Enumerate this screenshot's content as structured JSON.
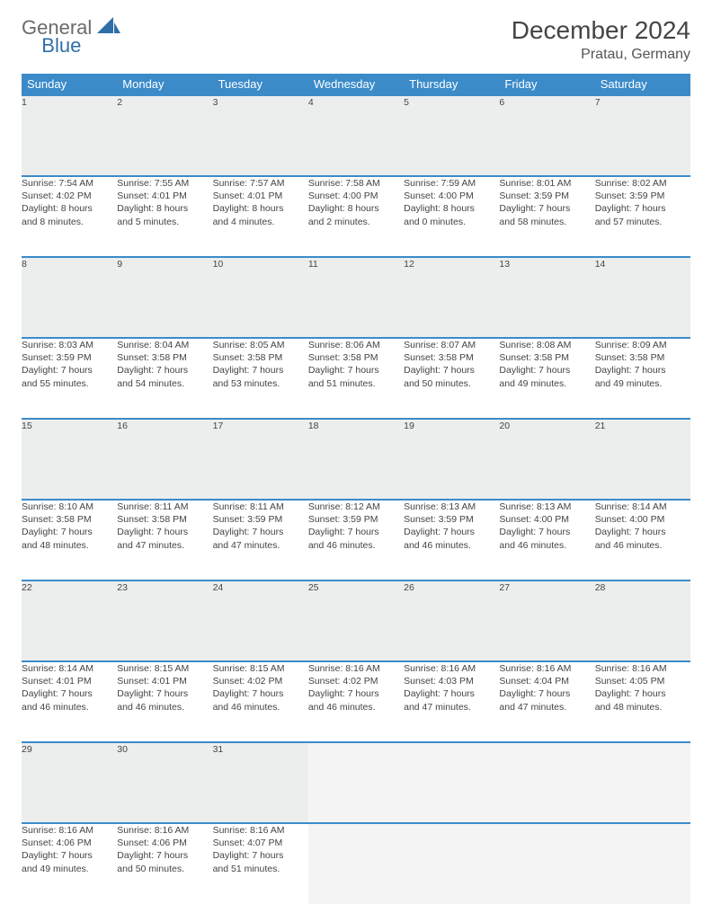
{
  "brand": {
    "part1": "General",
    "part2": "Blue"
  },
  "title": "December 2024",
  "location": "Pratau, Germany",
  "colors": {
    "header_bg": "#3b8bc9",
    "daynum_bg": "#eceeee",
    "rule": "#3b8bc9",
    "text": "#444444",
    "brand_gray": "#6b6b6b",
    "brand_blue": "#2f6fa8"
  },
  "day_headers": [
    "Sunday",
    "Monday",
    "Tuesday",
    "Wednesday",
    "Thursday",
    "Friday",
    "Saturday"
  ],
  "weeks": [
    [
      {
        "n": "1",
        "sr": "Sunrise: 7:54 AM",
        "ss": "Sunset: 4:02 PM",
        "dl1": "Daylight: 8 hours",
        "dl2": "and 8 minutes."
      },
      {
        "n": "2",
        "sr": "Sunrise: 7:55 AM",
        "ss": "Sunset: 4:01 PM",
        "dl1": "Daylight: 8 hours",
        "dl2": "and 5 minutes."
      },
      {
        "n": "3",
        "sr": "Sunrise: 7:57 AM",
        "ss": "Sunset: 4:01 PM",
        "dl1": "Daylight: 8 hours",
        "dl2": "and 4 minutes."
      },
      {
        "n": "4",
        "sr": "Sunrise: 7:58 AM",
        "ss": "Sunset: 4:00 PM",
        "dl1": "Daylight: 8 hours",
        "dl2": "and 2 minutes."
      },
      {
        "n": "5",
        "sr": "Sunrise: 7:59 AM",
        "ss": "Sunset: 4:00 PM",
        "dl1": "Daylight: 8 hours",
        "dl2": "and 0 minutes."
      },
      {
        "n": "6",
        "sr": "Sunrise: 8:01 AM",
        "ss": "Sunset: 3:59 PM",
        "dl1": "Daylight: 7 hours",
        "dl2": "and 58 minutes."
      },
      {
        "n": "7",
        "sr": "Sunrise: 8:02 AM",
        "ss": "Sunset: 3:59 PM",
        "dl1": "Daylight: 7 hours",
        "dl2": "and 57 minutes."
      }
    ],
    [
      {
        "n": "8",
        "sr": "Sunrise: 8:03 AM",
        "ss": "Sunset: 3:59 PM",
        "dl1": "Daylight: 7 hours",
        "dl2": "and 55 minutes."
      },
      {
        "n": "9",
        "sr": "Sunrise: 8:04 AM",
        "ss": "Sunset: 3:58 PM",
        "dl1": "Daylight: 7 hours",
        "dl2": "and 54 minutes."
      },
      {
        "n": "10",
        "sr": "Sunrise: 8:05 AM",
        "ss": "Sunset: 3:58 PM",
        "dl1": "Daylight: 7 hours",
        "dl2": "and 53 minutes."
      },
      {
        "n": "11",
        "sr": "Sunrise: 8:06 AM",
        "ss": "Sunset: 3:58 PM",
        "dl1": "Daylight: 7 hours",
        "dl2": "and 51 minutes."
      },
      {
        "n": "12",
        "sr": "Sunrise: 8:07 AM",
        "ss": "Sunset: 3:58 PM",
        "dl1": "Daylight: 7 hours",
        "dl2": "and 50 minutes."
      },
      {
        "n": "13",
        "sr": "Sunrise: 8:08 AM",
        "ss": "Sunset: 3:58 PM",
        "dl1": "Daylight: 7 hours",
        "dl2": "and 49 minutes."
      },
      {
        "n": "14",
        "sr": "Sunrise: 8:09 AM",
        "ss": "Sunset: 3:58 PM",
        "dl1": "Daylight: 7 hours",
        "dl2": "and 49 minutes."
      }
    ],
    [
      {
        "n": "15",
        "sr": "Sunrise: 8:10 AM",
        "ss": "Sunset: 3:58 PM",
        "dl1": "Daylight: 7 hours",
        "dl2": "and 48 minutes."
      },
      {
        "n": "16",
        "sr": "Sunrise: 8:11 AM",
        "ss": "Sunset: 3:58 PM",
        "dl1": "Daylight: 7 hours",
        "dl2": "and 47 minutes."
      },
      {
        "n": "17",
        "sr": "Sunrise: 8:11 AM",
        "ss": "Sunset: 3:59 PM",
        "dl1": "Daylight: 7 hours",
        "dl2": "and 47 minutes."
      },
      {
        "n": "18",
        "sr": "Sunrise: 8:12 AM",
        "ss": "Sunset: 3:59 PM",
        "dl1": "Daylight: 7 hours",
        "dl2": "and 46 minutes."
      },
      {
        "n": "19",
        "sr": "Sunrise: 8:13 AM",
        "ss": "Sunset: 3:59 PM",
        "dl1": "Daylight: 7 hours",
        "dl2": "and 46 minutes."
      },
      {
        "n": "20",
        "sr": "Sunrise: 8:13 AM",
        "ss": "Sunset: 4:00 PM",
        "dl1": "Daylight: 7 hours",
        "dl2": "and 46 minutes."
      },
      {
        "n": "21",
        "sr": "Sunrise: 8:14 AM",
        "ss": "Sunset: 4:00 PM",
        "dl1": "Daylight: 7 hours",
        "dl2": "and 46 minutes."
      }
    ],
    [
      {
        "n": "22",
        "sr": "Sunrise: 8:14 AM",
        "ss": "Sunset: 4:01 PM",
        "dl1": "Daylight: 7 hours",
        "dl2": "and 46 minutes."
      },
      {
        "n": "23",
        "sr": "Sunrise: 8:15 AM",
        "ss": "Sunset: 4:01 PM",
        "dl1": "Daylight: 7 hours",
        "dl2": "and 46 minutes."
      },
      {
        "n": "24",
        "sr": "Sunrise: 8:15 AM",
        "ss": "Sunset: 4:02 PM",
        "dl1": "Daylight: 7 hours",
        "dl2": "and 46 minutes."
      },
      {
        "n": "25",
        "sr": "Sunrise: 8:16 AM",
        "ss": "Sunset: 4:02 PM",
        "dl1": "Daylight: 7 hours",
        "dl2": "and 46 minutes."
      },
      {
        "n": "26",
        "sr": "Sunrise: 8:16 AM",
        "ss": "Sunset: 4:03 PM",
        "dl1": "Daylight: 7 hours",
        "dl2": "and 47 minutes."
      },
      {
        "n": "27",
        "sr": "Sunrise: 8:16 AM",
        "ss": "Sunset: 4:04 PM",
        "dl1": "Daylight: 7 hours",
        "dl2": "and 47 minutes."
      },
      {
        "n": "28",
        "sr": "Sunrise: 8:16 AM",
        "ss": "Sunset: 4:05 PM",
        "dl1": "Daylight: 7 hours",
        "dl2": "and 48 minutes."
      }
    ],
    [
      {
        "n": "29",
        "sr": "Sunrise: 8:16 AM",
        "ss": "Sunset: 4:06 PM",
        "dl1": "Daylight: 7 hours",
        "dl2": "and 49 minutes."
      },
      {
        "n": "30",
        "sr": "Sunrise: 8:16 AM",
        "ss": "Sunset: 4:06 PM",
        "dl1": "Daylight: 7 hours",
        "dl2": "and 50 minutes."
      },
      {
        "n": "31",
        "sr": "Sunrise: 8:16 AM",
        "ss": "Sunset: 4:07 PM",
        "dl1": "Daylight: 7 hours",
        "dl2": "and 51 minutes."
      },
      null,
      null,
      null,
      null
    ]
  ]
}
